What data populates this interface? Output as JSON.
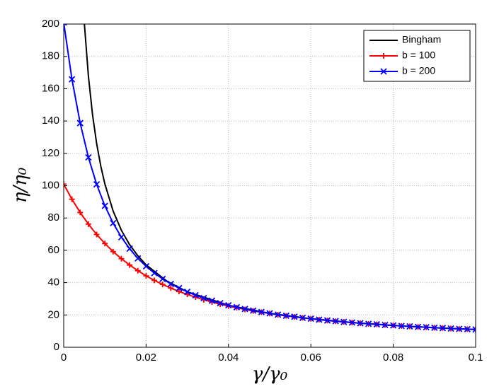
{
  "chart_data": {
    "type": "line",
    "xlabel": "γ/γ₀",
    "ylabel": "η/η₀",
    "xlim": [
      0,
      0.1
    ],
    "ylim": [
      0,
      200
    ],
    "xticks": [
      0,
      0.02,
      0.04,
      0.06,
      0.08,
      0.1
    ],
    "yticks": [
      0,
      20,
      40,
      60,
      80,
      100,
      120,
      140,
      160,
      180,
      200
    ],
    "grid": true,
    "legend": "upper right",
    "series": [
      {
        "name": "Bingham",
        "color": "#000000",
        "marker": "none",
        "x": [
          0.005025,
          0.006,
          0.007,
          0.008,
          0.009,
          0.01,
          0.012,
          0.014,
          0.016,
          0.018,
          0.02,
          0.025,
          0.03,
          0.04,
          0.05,
          0.06,
          0.07,
          0.08,
          0.09,
          0.1
        ],
        "values": [
          200.0,
          167.7,
          143.9,
          126,
          112.1,
          101,
          84.3,
          72.4,
          63.5,
          56.6,
          51,
          41,
          34.3,
          26,
          21,
          17.7,
          15.3,
          13.5,
          12.1,
          11
        ]
      },
      {
        "name": "b = 100",
        "color": "#ff0000",
        "marker": "plus",
        "x": [
          0,
          0.002,
          0.004,
          0.006,
          0.008,
          0.01,
          0.012,
          0.014,
          0.016,
          0.018,
          0.02,
          0.022,
          0.024,
          0.026,
          0.028,
          0.03,
          0.032,
          0.034,
          0.036,
          0.038,
          0.04,
          0.042,
          0.044,
          0.046,
          0.048,
          0.05,
          0.052,
          0.054,
          0.056,
          0.058,
          0.06,
          0.062,
          0.064,
          0.066,
          0.068,
          0.07,
          0.072,
          0.074,
          0.076,
          0.078,
          0.08,
          0.082,
          0.084,
          0.086,
          0.088,
          0.09,
          0.092,
          0.094,
          0.096,
          0.098,
          0.1
        ],
        "values": [
          101,
          91.6,
          83.4,
          76.2,
          69.8,
          64.2,
          59.2,
          54.8,
          50.9,
          47.4,
          44.2,
          41.4,
          38.9,
          36.6,
          34.5,
          32.7,
          31.0,
          29.4,
          28.0,
          26.7,
          25.5,
          24.5,
          23.4,
          22.5,
          21.7,
          20.9,
          20.1,
          19.4,
          18.8,
          18.2,
          17.6,
          17.1,
          16.6,
          16.1,
          15.7,
          15.3,
          14.9,
          14.5,
          14.2,
          13.8,
          13.5,
          13.2,
          12.9,
          12.6,
          12.4,
          12.1,
          11.9,
          11.6,
          11.4,
          11.2,
          11.0
        ]
      },
      {
        "name": "b = 200",
        "color": "#0000ff",
        "marker": "x",
        "x": [
          0,
          0.002,
          0.004,
          0.006,
          0.008,
          0.01,
          0.012,
          0.014,
          0.016,
          0.018,
          0.02,
          0.022,
          0.024,
          0.026,
          0.028,
          0.03,
          0.032,
          0.034,
          0.036,
          0.038,
          0.04,
          0.042,
          0.044,
          0.046,
          0.048,
          0.05,
          0.052,
          0.054,
          0.056,
          0.058,
          0.06,
          0.062,
          0.064,
          0.066,
          0.068,
          0.07,
          0.072,
          0.074,
          0.076,
          0.078,
          0.08,
          0.082,
          0.084,
          0.086,
          0.088,
          0.09,
          0.092,
          0.094,
          0.096,
          0.098,
          0.1
        ],
        "values": [
          201,
          165.8,
          138.7,
          117.5,
          100.8,
          87.5,
          76.8,
          68.1,
          61.0,
          55.0,
          50.1,
          45.9,
          42.3,
          39.2,
          36.6,
          34.3,
          32.2,
          30.4,
          28.8,
          27.3,
          26.0,
          24.8,
          23.7,
          22.7,
          21.8,
          21.0,
          20.2,
          19.5,
          18.9,
          18.2,
          17.7,
          17.1,
          16.6,
          16.2,
          15.7,
          15.3,
          14.9,
          14.5,
          14.2,
          13.8,
          13.5,
          13.2,
          12.9,
          12.6,
          12.4,
          12.1,
          11.9,
          11.6,
          11.4,
          11.2,
          11.0
        ]
      }
    ]
  }
}
